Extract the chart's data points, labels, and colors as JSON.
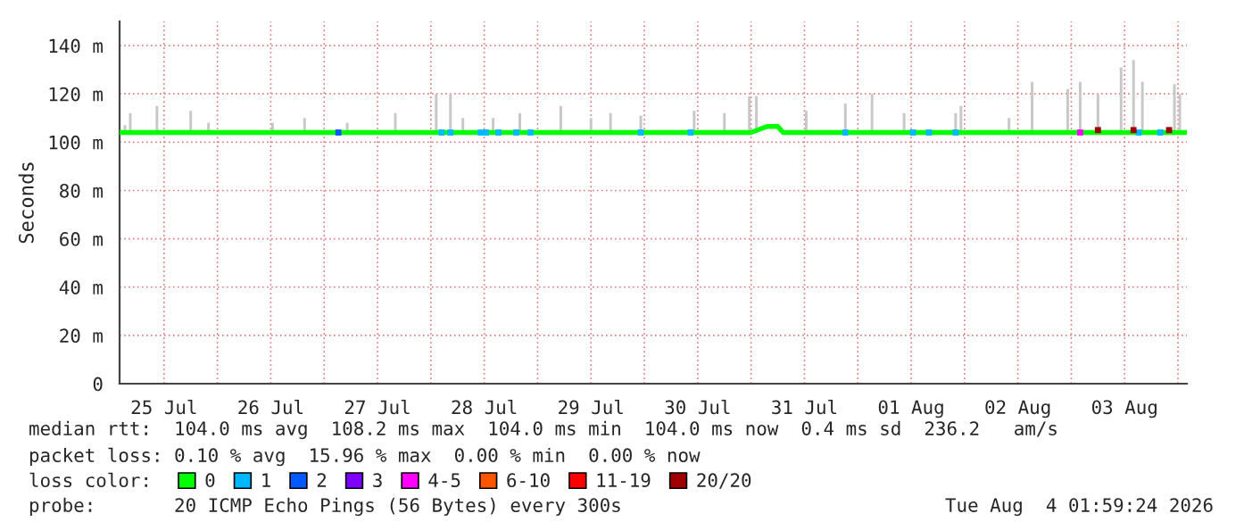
{
  "chart_data": {
    "type": "line",
    "ylabel": "Seconds",
    "legend_title": "loss color:",
    "legend": "bottom",
    "grid": true,
    "marker": "none",
    "xlim": [
      "2026-07-25T02:00",
      "2026-08-04T02:00"
    ],
    "xticks": [
      {
        "value": "2026-07-25T12:00",
        "label": "25 Jul"
      },
      {
        "value": "2026-07-26T00:00",
        "label": null
      },
      {
        "value": "2026-07-26T12:00",
        "label": "26 Jul"
      },
      {
        "value": "2026-07-27T00:00",
        "label": null
      },
      {
        "value": "2026-07-27T12:00",
        "label": "27 Jul"
      },
      {
        "value": "2026-07-28T00:00",
        "label": null
      },
      {
        "value": "2026-07-28T12:00",
        "label": "28 Jul"
      },
      {
        "value": "2026-07-29T00:00",
        "label": null
      },
      {
        "value": "2026-07-29T12:00",
        "label": "29 Jul"
      },
      {
        "value": "2026-07-30T00:00",
        "label": null
      },
      {
        "value": "2026-07-30T12:00",
        "label": "30 Jul"
      },
      {
        "value": "2026-07-31T00:00",
        "label": null
      },
      {
        "value": "2026-07-31T12:00",
        "label": "31 Jul"
      },
      {
        "value": "2026-08-01T00:00",
        "label": null
      },
      {
        "value": "2026-08-01T12:00",
        "label": "01 Aug"
      },
      {
        "value": "2026-08-02T00:00",
        "label": null
      },
      {
        "value": "2026-08-02T12:00",
        "label": "02 Aug"
      },
      {
        "value": "2026-08-03T00:00",
        "label": null
      },
      {
        "value": "2026-08-03T12:00",
        "label": "03 Aug"
      },
      {
        "value": "2026-08-04T00:00",
        "label": null
      }
    ],
    "ylim": [
      0,
      150
    ],
    "yticks": [
      0,
      {
        "value": 20,
        "label": "20 m"
      },
      {
        "value": 40,
        "label": "40 m"
      },
      {
        "value": 60,
        "label": "60 m"
      },
      {
        "value": 80,
        "label": "80 m"
      },
      {
        "value": 100,
        "label": "100 m"
      },
      {
        "value": 120,
        "label": "120 m"
      },
      {
        "value": 140,
        "label": "140 m"
      }
    ],
    "series": [
      {
        "type": "bar",
        "color": "#c8c8c8",
        "x": [
          "2026-07-25T03:12",
          "2026-07-25T04:24",
          "2026-07-25T10:24",
          "2026-07-25T18:00",
          "2026-07-25T22:00",
          "2026-07-26T12:24",
          "2026-07-26T19:36",
          "2026-07-27T05:12",
          "2026-07-27T16:00",
          "2026-07-28T01:12",
          "2026-07-28T04:24",
          "2026-07-28T07:12",
          "2026-07-28T14:00",
          "2026-07-28T20:00",
          "2026-07-29T05:12",
          "2026-07-29T12:00",
          "2026-07-29T16:24",
          "2026-07-29T23:12",
          "2026-07-30T11:12",
          "2026-07-30T18:00",
          "2026-07-30T23:36",
          "2026-07-31T01:12",
          "2026-07-31T12:24",
          "2026-07-31T21:12",
          "2026-08-01T03:12",
          "2026-08-01T10:24",
          "2026-08-01T22:00",
          "2026-08-01T23:12",
          "2026-08-02T10:00",
          "2026-08-02T15:12",
          "2026-08-02T23:12",
          "2026-08-03T02:00",
          "2026-08-03T06:00",
          "2026-08-03T11:12",
          "2026-08-03T14:00",
          "2026-08-03T16:00",
          "2026-08-03T23:12",
          "2026-08-04T00:24"
        ],
        "base": [
          104,
          104,
          104,
          104,
          104,
          104,
          104,
          104,
          104,
          104,
          104,
          104,
          104,
          104,
          104,
          104,
          104,
          104,
          104,
          104,
          104,
          104,
          104,
          104,
          104,
          104,
          104,
          104,
          104,
          104,
          104,
          104,
          104,
          104,
          104,
          104,
          104,
          104
        ],
        "values": [
          3,
          8,
          11,
          9,
          4,
          4,
          6,
          4,
          8,
          16,
          16,
          6,
          6,
          8,
          11,
          6,
          8,
          7,
          9,
          8,
          15,
          15,
          9,
          12,
          16,
          8,
          8,
          11,
          6,
          21,
          18,
          21,
          16,
          27,
          30,
          21,
          20,
          16
        ]
      },
      {
        "name": "0",
        "color": "#00ff00",
        "x": [
          "2026-07-25T02:00",
          "2026-07-31T00:00",
          "2026-07-31T03:36",
          "2026-07-31T06:00",
          "2026-07-31T07:12",
          "2026-08-04T02:00"
        ],
        "values": [
          104,
          104,
          106.5,
          106.5,
          104,
          104
        ]
      },
      {
        "type": "scatter",
        "marker": "square",
        "name": "1",
        "color": "#00b8ff",
        "x": [
          "2026-07-28T02:24",
          "2026-07-28T04:24",
          "2026-07-28T11:12",
          "2026-07-28T12:24",
          "2026-07-28T15:12",
          "2026-07-28T19:12",
          "2026-07-28T22:24",
          "2026-07-29T23:12",
          "2026-07-30T10:24",
          "2026-07-31T21:12",
          "2026-08-01T12:24",
          "2026-08-01T16:00",
          "2026-08-01T22:00",
          "2026-08-03T15:12",
          "2026-08-03T20:00"
        ],
        "values": [
          104,
          104,
          104,
          104,
          104,
          104,
          104,
          104,
          104,
          104,
          104,
          104,
          104,
          104,
          104
        ]
      },
      {
        "type": "scatter",
        "marker": "square",
        "name": "2",
        "color": "#0059ff",
        "x": [
          "2026-07-27T03:12"
        ],
        "values": [
          104
        ]
      },
      {
        "type": "scatter",
        "name": "3",
        "color": "#7e00ff"
      },
      {
        "type": "scatter",
        "marker": "square",
        "name": "4-5",
        "color": "#ff00ff",
        "x": [
          "2026-08-03T02:00"
        ],
        "values": [
          104
        ]
      },
      {
        "type": "scatter",
        "name": "6-10",
        "color": "#ff5500"
      },
      {
        "type": "scatter",
        "name": "11-19",
        "color": "#ff0000"
      },
      {
        "type": "scatter",
        "marker": "square",
        "name": "20/20",
        "color": "#a10000",
        "x": [
          "2026-08-03T06:00",
          "2026-08-03T14:00",
          "2026-08-03T22:00"
        ],
        "values": [
          105,
          105,
          105
        ]
      }
    ],
    "annotations": [
      "median rtt:  104.0 ms avg  108.2 ms max  104.0 ms min  104.0 ms now  0.4 ms sd  236.2   am/s",
      "packet loss: 0.10 % avg  15.96 % max  0.00 % min  0.00 % now",
      "probe:       20 ICMP Echo Pings (56 Bytes) every 300s",
      "Tue Aug  4 01:59:24 2026"
    ]
  }
}
